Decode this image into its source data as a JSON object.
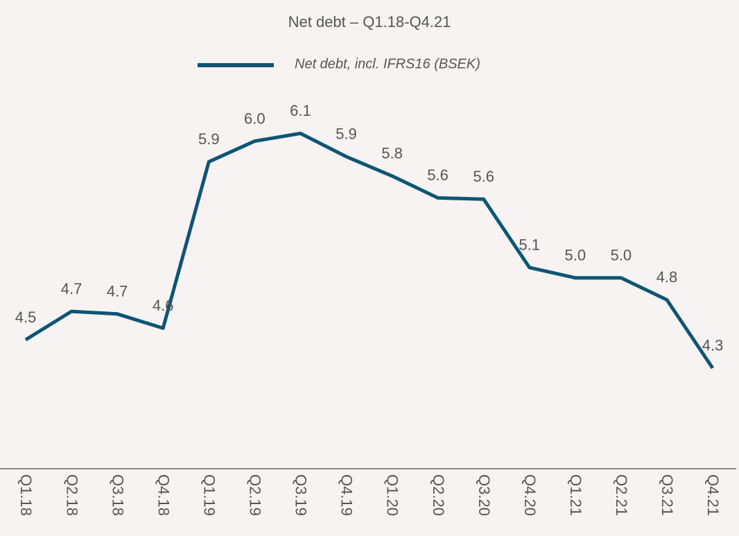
{
  "chart_data": {
    "type": "line",
    "title": "Net debt – Q1.18-Q4.21",
    "categories": [
      "Q1.18",
      "Q2.18",
      "Q3.18",
      "Q4.18",
      "Q1.19",
      "Q2.19",
      "Q3.19",
      "Q4.19",
      "Q1.20",
      "Q2.20",
      "Q3.20",
      "Q4.20",
      "Q1.21",
      "Q2.21",
      "Q3.21",
      "Q4.21"
    ],
    "series": [
      {
        "name": "Net debt, incl. IFRS16 (BSEK)",
        "color": "#0e5575",
        "values": [
          4.5,
          4.72,
          4.7,
          4.59,
          5.88,
          6.04,
          6.1,
          5.92,
          5.77,
          5.6,
          5.59,
          5.06,
          4.98,
          4.98,
          4.81,
          4.28
        ],
        "value_labels": [
          "4.5",
          "4.7",
          "4.7",
          "4.6",
          "5.9",
          "6.0",
          "6.1",
          "5.9",
          "5.8",
          "5.6",
          "5.6",
          "5.1",
          "5.0",
          "5.0",
          "4.8",
          "4.3"
        ]
      }
    ],
    "ylim": [
      3.5,
      7.1
    ],
    "legend": "top"
  }
}
